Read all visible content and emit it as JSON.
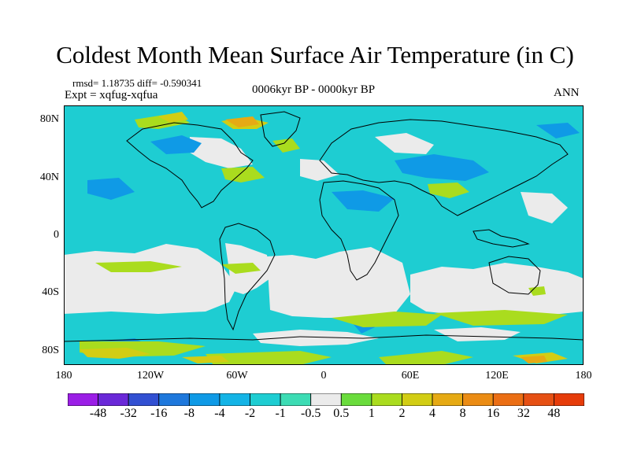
{
  "title": "Coldest Month Mean Surface Air Temperature (in C)",
  "stats": "rmsd= 1.18735  diff= -0.590341",
  "experiment": "Expt = xqfug-xqfua",
  "period": "0006kyr BP - 0000kyr BP",
  "season": "ANN",
  "y_axis": {
    "labels": [
      "80N",
      "40N",
      "0",
      "40S",
      "80S"
    ],
    "values": [
      80,
      40,
      0,
      -40,
      -80
    ]
  },
  "x_axis": {
    "labels": [
      "180",
      "120W",
      "60W",
      "0",
      "60E",
      "120E",
      "180"
    ],
    "values": [
      -180,
      -120,
      -60,
      0,
      60,
      120,
      180
    ]
  },
  "colorbar": {
    "labels": [
      "-48",
      "-32",
      "-16",
      "-8",
      "-4",
      "-2",
      "-1",
      "-0.5",
      "0.5",
      "1",
      "2",
      "4",
      "8",
      "16",
      "32",
      "48"
    ],
    "colors": [
      "#9b1ee6",
      "#6a28d8",
      "#3250d2",
      "#1e78dc",
      "#0f9ae6",
      "#14b4e6",
      "#1ecdd2",
      "#3cdcb4",
      "#ebebeb",
      "#6adc3c",
      "#aadc1e",
      "#d2cd14",
      "#e6aa14",
      "#eb8c14",
      "#eb6e14",
      "#e65014",
      "#e63c0a"
    ]
  },
  "colors": {
    "background_neutral": "#ebebeb",
    "cooling_light": "#1ecdd2",
    "cooling_mid": "#0f9ae6",
    "warming_light": "#aadc1e",
    "warming_mid": "#d2cd14",
    "warming_strong": "#e6aa14",
    "coastline": "#000000"
  }
}
